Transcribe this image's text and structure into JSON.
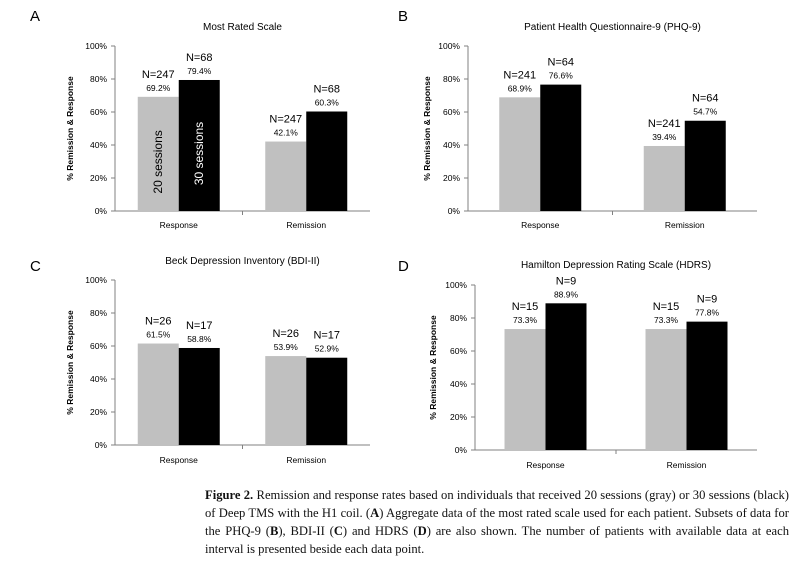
{
  "panel_labels": [
    "A",
    "B",
    "C",
    "D"
  ],
  "chart_data": [
    {
      "type": "bar",
      "title": "Most Rated Scale",
      "ylabel": "% Remission & Response",
      "ylim": [
        0,
        100
      ],
      "yticks": [
        "0%",
        "20%",
        "40%",
        "60%",
        "80%",
        "100%"
      ],
      "categories": [
        "Response",
        "Remission"
      ],
      "series": [
        {
          "name": "20 sessions",
          "color": "#c0c0c0",
          "values": [
            69.2,
            42.1
          ],
          "n_labels": [
            "N=247",
            "N=247"
          ],
          "pct_labels": [
            "69.2%",
            "42.1%"
          ]
        },
        {
          "name": "30 sessions",
          "color": "#000000",
          "values": [
            79.4,
            60.3
          ],
          "n_labels": [
            "N=68",
            "N=68"
          ],
          "pct_labels": [
            "79.4%",
            "60.3%"
          ]
        }
      ]
    },
    {
      "type": "bar",
      "title": "Patient Health Questionnaire-9 (PHQ-9)",
      "ylabel": "% Remission & Response",
      "ylim": [
        0,
        100
      ],
      "yticks": [
        "0%",
        "20%",
        "40%",
        "60%",
        "80%",
        "100%"
      ],
      "categories": [
        "Response",
        "Remission"
      ],
      "series": [
        {
          "color": "#c0c0c0",
          "values": [
            68.9,
            39.4
          ],
          "n_labels": [
            "N=241",
            "N=241"
          ],
          "pct_labels": [
            "68.9%",
            "39.4%"
          ]
        },
        {
          "color": "#000000",
          "values": [
            76.6,
            54.7
          ],
          "n_labels": [
            "N=64",
            "N=64"
          ],
          "pct_labels": [
            "76.6%",
            "54.7%"
          ]
        }
      ]
    },
    {
      "type": "bar",
      "title": "Beck Depression Inventory (BDI-II)",
      "ylabel": "% Remission & Response",
      "ylim": [
        0,
        100
      ],
      "yticks": [
        "0%",
        "20%",
        "40%",
        "60%",
        "80%",
        "100%"
      ],
      "categories": [
        "Response",
        "Remission"
      ],
      "series": [
        {
          "color": "#c0c0c0",
          "values": [
            61.5,
            53.9
          ],
          "n_labels": [
            "N=26",
            "N=26"
          ],
          "pct_labels": [
            "61.5%",
            "53.9%"
          ]
        },
        {
          "color": "#000000",
          "values": [
            58.8,
            52.9
          ],
          "n_labels": [
            "N=17",
            "N=17"
          ],
          "pct_labels": [
            "58.8%",
            "52.9%"
          ]
        }
      ]
    },
    {
      "type": "bar",
      "title": "Hamilton Depression Rating Scale (HDRS)",
      "ylabel": "% Remission & Response",
      "ylim": [
        0,
        100
      ],
      "yticks": [
        "0%",
        "20%",
        "40%",
        "60%",
        "80%",
        "100%"
      ],
      "categories": [
        "Response",
        "Remission"
      ],
      "series": [
        {
          "color": "#c0c0c0",
          "values": [
            73.3,
            73.3
          ],
          "n_labels": [
            "N=15",
            "N=15"
          ],
          "pct_labels": [
            "73.3%",
            "73.3%"
          ]
        },
        {
          "color": "#000000",
          "values": [
            88.9,
            77.8
          ],
          "n_labels": [
            "N=9",
            "N=9"
          ],
          "pct_labels": [
            "88.9%",
            "77.8%"
          ]
        }
      ]
    }
  ],
  "caption": {
    "lead": "Figure 2.",
    "p1": " Remission and response rates based on individuals that received 20 sessions (gray) or 30 sessions (black) of Deep TMS with the H1 coil. (",
    "a": "A",
    "p2": ") Aggregate data of the most rated scale used for each patient. Subsets of data for the PHQ-9 (",
    "b": "B",
    "p3": "), BDI-II (",
    "c": "C",
    "p4": ") and HDRS (",
    "d": "D",
    "p5": ") are also shown. The number of patients with available data at each interval is presented beside each data point."
  }
}
